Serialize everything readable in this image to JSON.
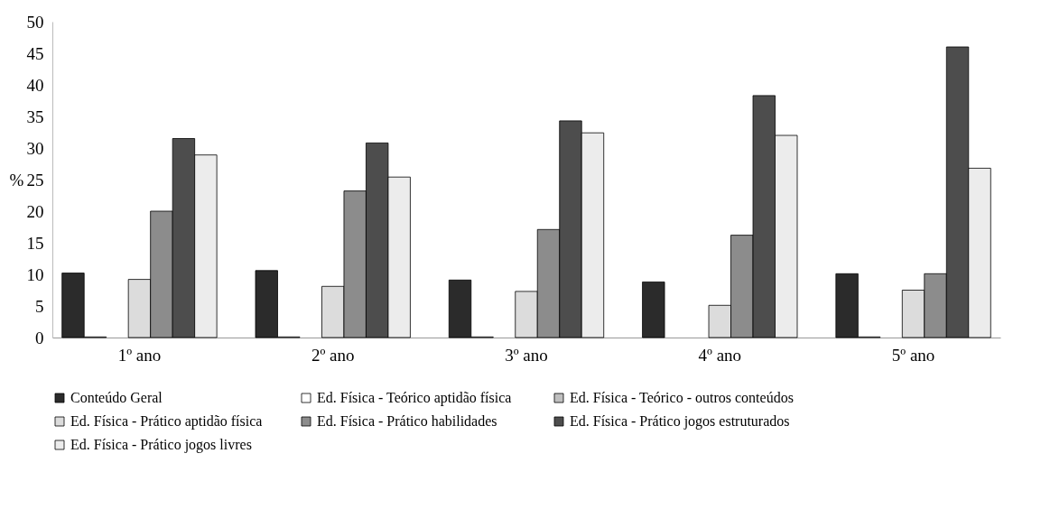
{
  "chart_data": {
    "type": "bar",
    "ylabel": "%",
    "categories": [
      "1º ano",
      "2º ano",
      "3º ano",
      "4º ano",
      "5º ano"
    ],
    "series": [
      {
        "name": "Conteúdo Geral",
        "color": "#2b2b2b",
        "values": [
          10.2,
          10.6,
          9.1,
          8.8,
          10.1
        ]
      },
      {
        "name": "Ed. Física - Teórico  aptidão física",
        "color": "#ffffff",
        "values": [
          0.1,
          0.1,
          0.1,
          0,
          0.1
        ]
      },
      {
        "name": "Ed. Física - Teórico - outros conteúdos",
        "color": "#bfbfbf",
        "values": [
          0,
          0,
          0,
          0,
          0
        ]
      },
      {
        "name": "Ed. Física - Prático aptidão física",
        "color": "#dcdcdc",
        "values": [
          9.2,
          8.1,
          7.3,
          5.1,
          7.5
        ]
      },
      {
        "name": "Ed. Física - Prático  habilidades",
        "color": "#8c8c8c",
        "values": [
          20.0,
          23.2,
          17.1,
          16.2,
          10.1
        ]
      },
      {
        "name": "Ed. Física - Prático jogos estruturados",
        "color": "#4d4d4d",
        "values": [
          31.5,
          30.8,
          34.3,
          38.3,
          46.0
        ]
      },
      {
        "name": "Ed. Física - Prático jogos livres",
        "color": "#ececec",
        "values": [
          28.9,
          25.4,
          32.4,
          32.0,
          26.8
        ]
      }
    ],
    "ylim": [
      0,
      50
    ],
    "yticks": [
      0,
      5,
      10,
      15,
      20,
      25,
      30,
      35,
      40,
      45,
      50
    ],
    "grid": false,
    "legend": "bottom"
  }
}
